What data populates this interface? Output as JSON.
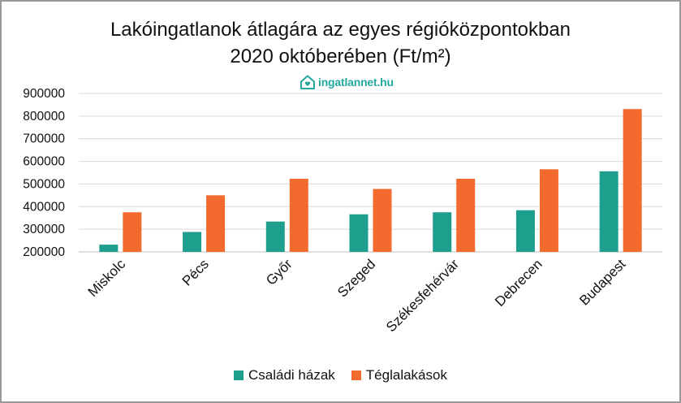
{
  "title": {
    "line1": "Lakóingatlanok átlagára az egyes régióközpontokban",
    "line2": "2020 októberében (Ft/m²)"
  },
  "brand": {
    "text": "ingatlannet.hu",
    "icon": "house-heart-icon",
    "color": "#25a8a0"
  },
  "chart_data": {
    "type": "bar",
    "title": "Lakóingatlanok átlagára az egyes régióközpontokban 2020 októberében (Ft/m²)",
    "categories": [
      "Miskolc",
      "Pécs",
      "Győr",
      "Szeged",
      "Székesfehérvár",
      "Debrecen",
      "Budapest"
    ],
    "series": [
      {
        "name": "Családi házak",
        "color": "#1e9e8c",
        "values": [
          232000,
          288000,
          334000,
          366000,
          375000,
          384000,
          556000
        ]
      },
      {
        "name": "Téglalakások",
        "color": "#f26a2d",
        "values": [
          375000,
          450000,
          523000,
          478000,
          523000,
          565000,
          831000
        ]
      }
    ],
    "ylim": [
      200000,
      900000
    ],
    "yticks": [
      "200000",
      "300000",
      "400000",
      "500000",
      "600000",
      "700000",
      "800000",
      "900000"
    ],
    "grid": true,
    "legend_position": "bottom"
  }
}
